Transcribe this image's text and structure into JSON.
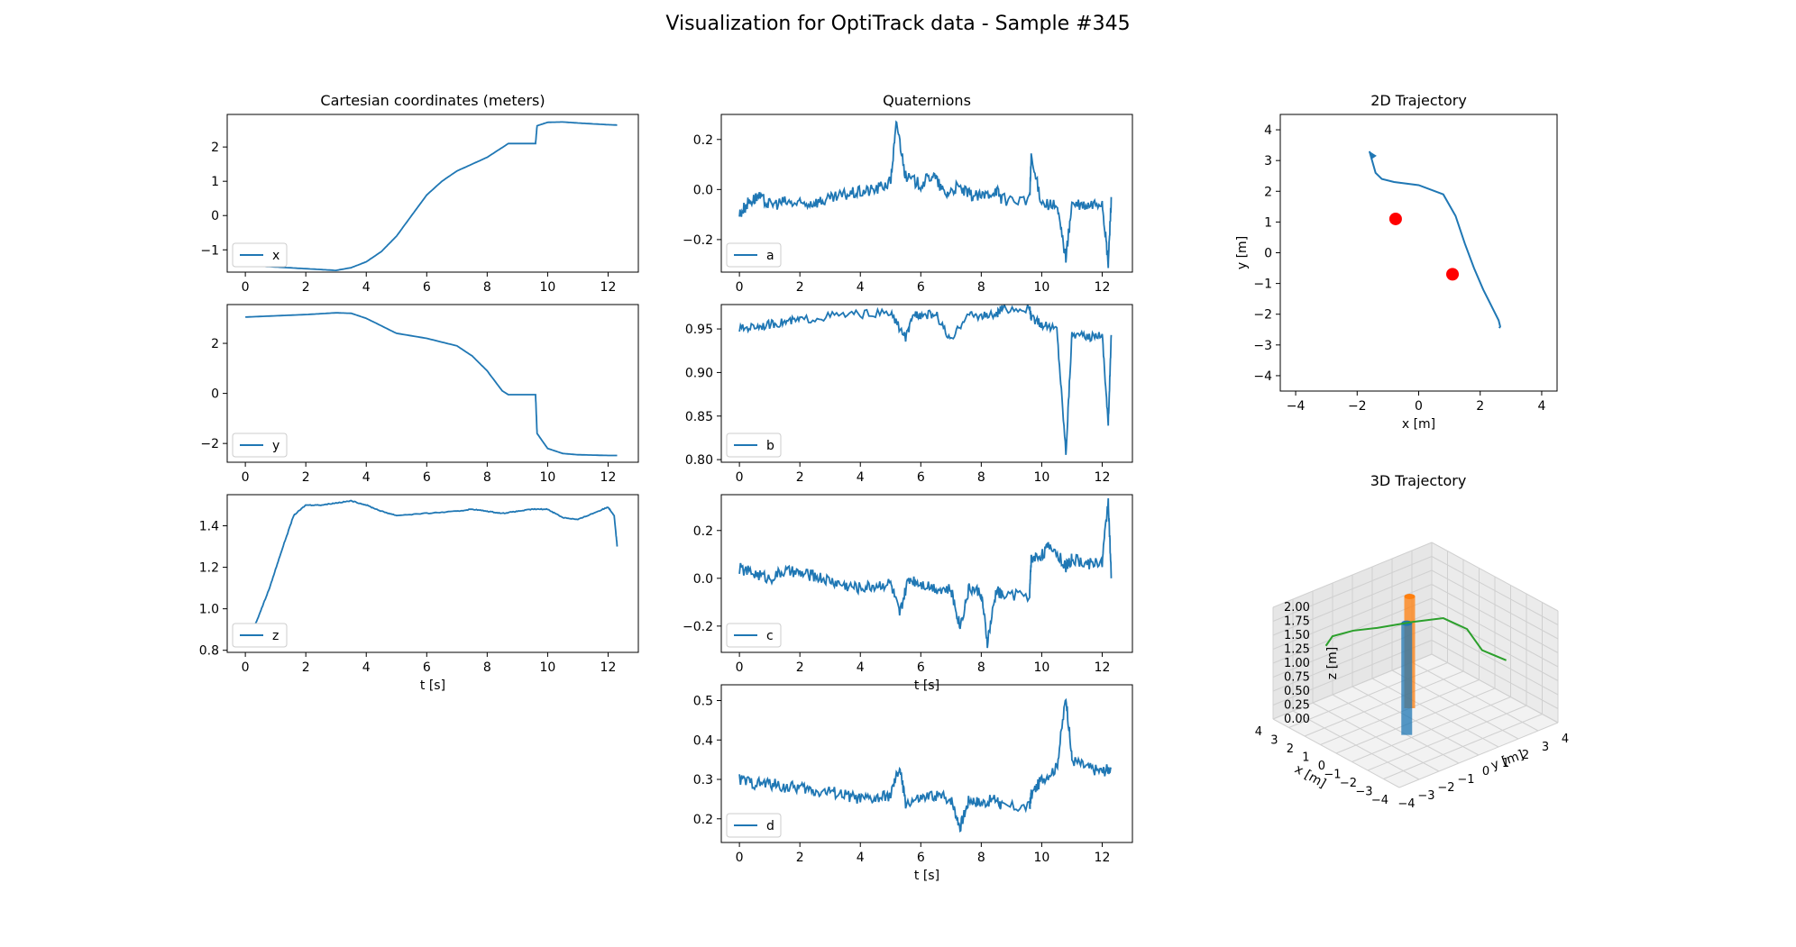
{
  "figure": {
    "title": "Visualization for OptiTrack data - Sample #345"
  },
  "colors": {
    "series": "#1f77b4",
    "marker": "#ff0000",
    "trajectory3d": "#2ca02c",
    "obstacle1": "#1f77b4",
    "obstacle2": "#ff7f0e",
    "axes": "#000000",
    "legend_border": "#cccccc"
  },
  "chart_data": [
    {
      "id": "x",
      "type": "line",
      "title": "Cartesian coordinates (meters)",
      "xlabel": "",
      "ylabel": "",
      "xlim": [
        -0.6,
        13.0
      ],
      "ylim": [
        -1.65,
        2.95
      ],
      "xticks": [
        "0",
        "2",
        "4",
        "6",
        "8",
        "10",
        "12"
      ],
      "xtick_values": [
        0,
        2,
        4,
        6,
        8,
        10,
        12
      ],
      "yticks": [
        "−1",
        "0",
        "1",
        "2"
      ],
      "ytick_values": [
        -1,
        0,
        1,
        2
      ],
      "legend": "x",
      "legend_position": "lower left",
      "x": [
        0,
        1,
        2,
        3,
        3.5,
        4,
        4.5,
        5,
        5.5,
        6,
        6.5,
        7,
        7.5,
        8,
        8.7,
        9.6,
        9.65,
        10,
        10.5,
        11,
        12,
        12.3
      ],
      "y": [
        -1.45,
        -1.5,
        -1.55,
        -1.6,
        -1.52,
        -1.35,
        -1.05,
        -0.6,
        0,
        0.6,
        1.0,
        1.3,
        1.5,
        1.7,
        2.1,
        2.1,
        2.62,
        2.72,
        2.73,
        2.7,
        2.65,
        2.64
      ]
    },
    {
      "id": "y",
      "type": "line",
      "title": "",
      "xlabel": "",
      "ylabel": "",
      "xlim": [
        -0.6,
        13.0
      ],
      "ylim": [
        -2.75,
        3.55
      ],
      "xticks": [
        "0",
        "2",
        "4",
        "6",
        "8",
        "10",
        "12"
      ],
      "xtick_values": [
        0,
        2,
        4,
        6,
        8,
        10,
        12
      ],
      "yticks": [
        "−2",
        "0",
        "2"
      ],
      "ytick_values": [
        -2,
        0,
        2
      ],
      "legend": "y",
      "legend_position": "lower left",
      "x": [
        0,
        1,
        2,
        3,
        3.5,
        4,
        4.5,
        5,
        6,
        7,
        7.5,
        8,
        8.5,
        8.7,
        9.6,
        9.65,
        10,
        10.5,
        11,
        12,
        12.3
      ],
      "y": [
        3.05,
        3.1,
        3.15,
        3.22,
        3.2,
        3.0,
        2.7,
        2.4,
        2.2,
        1.9,
        1.5,
        0.9,
        0.1,
        -0.05,
        -0.05,
        -1.6,
        -2.2,
        -2.4,
        -2.45,
        -2.48,
        -2.48
      ]
    },
    {
      "id": "z",
      "type": "line",
      "title": "",
      "xlabel": "t [s]",
      "ylabel": "",
      "xlim": [
        -0.6,
        13.0
      ],
      "ylim": [
        0.79,
        1.55
      ],
      "xticks": [
        "0",
        "2",
        "4",
        "6",
        "8",
        "10",
        "12"
      ],
      "xtick_values": [
        0,
        2,
        4,
        6,
        8,
        10,
        12
      ],
      "yticks": [
        "0.8",
        "1.0",
        "1.2",
        "1.4"
      ],
      "ytick_values": [
        0.8,
        1.0,
        1.2,
        1.4
      ],
      "legend": "z",
      "legend_position": "lower left",
      "x": [
        0,
        0.4,
        0.8,
        1.2,
        1.6,
        2,
        2.5,
        3,
        3.5,
        4,
        4.5,
        5,
        6,
        7,
        7.5,
        8,
        8.5,
        9,
        9.5,
        10,
        10.5,
        11,
        11.5,
        12,
        12.2,
        12.3
      ],
      "y": [
        0.82,
        0.95,
        1.1,
        1.28,
        1.45,
        1.5,
        1.5,
        1.51,
        1.52,
        1.5,
        1.47,
        1.45,
        1.46,
        1.47,
        1.48,
        1.47,
        1.46,
        1.47,
        1.48,
        1.48,
        1.44,
        1.43,
        1.46,
        1.49,
        1.45,
        1.3
      ]
    },
    {
      "id": "a",
      "type": "line",
      "title": "Quaternions",
      "xlabel": "",
      "ylabel": "",
      "xlim": [
        -0.6,
        13.0
      ],
      "ylim": [
        -0.33,
        0.3
      ],
      "xticks": [
        "0",
        "2",
        "4",
        "6",
        "8",
        "10",
        "12"
      ],
      "xtick_values": [
        0,
        2,
        4,
        6,
        8,
        10,
        12
      ],
      "yticks": [
        "−0.2",
        "0.0",
        "0.2"
      ],
      "ytick_values": [
        -0.2,
        0,
        0.2
      ],
      "legend": "a",
      "legend_position": "lower left",
      "x": [
        0,
        0.3,
        0.6,
        1,
        1.5,
        2,
        2.5,
        3,
        3.5,
        4,
        4.5,
        5,
        5.2,
        5.5,
        6,
        6.4,
        6.8,
        7.2,
        7.6,
        8,
        8.5,
        8.7,
        9.6,
        9.65,
        10,
        10.5,
        10.8,
        11,
        11.5,
        12,
        12.2,
        12.3
      ],
      "y": [
        -0.1,
        -0.05,
        -0.03,
        -0.06,
        -0.05,
        -0.06,
        -0.05,
        -0.04,
        -0.02,
        -0.01,
        0.0,
        0.03,
        0.27,
        0.05,
        0.02,
        0.06,
        -0.02,
        0.01,
        -0.02,
        -0.03,
        0.0,
        -0.04,
        -0.04,
        0.12,
        -0.05,
        -0.07,
        -0.27,
        -0.06,
        -0.07,
        -0.05,
        -0.3,
        -0.03
      ]
    },
    {
      "id": "b",
      "type": "line",
      "title": "",
      "xlabel": "",
      "ylabel": "",
      "xlim": [
        -0.6,
        13.0
      ],
      "ylim": [
        0.797,
        0.978
      ],
      "xticks": [
        "0",
        "2",
        "4",
        "6",
        "8",
        "10",
        "12"
      ],
      "xtick_values": [
        0,
        2,
        4,
        6,
        8,
        10,
        12
      ],
      "yticks": [
        "0.80",
        "0.85",
        "0.90",
        "0.95"
      ],
      "ytick_values": [
        0.8,
        0.85,
        0.9,
        0.95
      ],
      "legend": "b",
      "legend_position": "lower left",
      "x": [
        0,
        0.5,
        1,
        1.5,
        2,
        3,
        4,
        5,
        5.5,
        5.8,
        6,
        6.5,
        7,
        7.5,
        8,
        8.5,
        8.7,
        9.6,
        9.65,
        10,
        10.5,
        10.8,
        11,
        11.5,
        12,
        12.2,
        12.3
      ],
      "y": [
        0.95,
        0.953,
        0.955,
        0.958,
        0.96,
        0.965,
        0.967,
        0.968,
        0.94,
        0.968,
        0.966,
        0.967,
        0.935,
        0.966,
        0.965,
        0.966,
        0.973,
        0.973,
        0.963,
        0.955,
        0.95,
        0.808,
        0.945,
        0.94,
        0.945,
        0.84,
        0.943
      ]
    },
    {
      "id": "c",
      "type": "line",
      "title": "",
      "xlabel": "t [s]",
      "ylabel": "",
      "xlim": [
        -0.6,
        13.0
      ],
      "ylim": [
        -0.31,
        0.35
      ],
      "xticks": [
        "0",
        "2",
        "4",
        "6",
        "8",
        "10",
        "12"
      ],
      "xtick_values": [
        0,
        2,
        4,
        6,
        8,
        10,
        12
      ],
      "yticks": [
        "−0.2",
        "0.0",
        "0.2"
      ],
      "ytick_values": [
        -0.2,
        0,
        0.2
      ],
      "legend": "c",
      "legend_position": "lower left",
      "x": [
        0,
        0.5,
        1,
        1.5,
        2,
        2.5,
        3,
        3.5,
        4,
        4.5,
        5,
        5.3,
        5.6,
        6,
        6.5,
        7,
        7.3,
        7.6,
        8,
        8.2,
        8.5,
        8.7,
        9.6,
        9.65,
        10,
        10.3,
        10.8,
        11,
        11.5,
        12,
        12.2,
        12.3
      ],
      "y": [
        0.04,
        0.02,
        0.0,
        0.03,
        0.02,
        0.01,
        -0.01,
        -0.03,
        -0.04,
        -0.03,
        -0.02,
        -0.15,
        0.0,
        -0.02,
        -0.04,
        -0.05,
        -0.2,
        -0.04,
        -0.06,
        -0.27,
        -0.05,
        -0.07,
        -0.07,
        0.08,
        0.1,
        0.14,
        0.05,
        0.08,
        0.06,
        0.07,
        0.33,
        0.0
      ]
    },
    {
      "id": "d",
      "type": "line",
      "title": "",
      "xlabel": "t [s]",
      "ylabel": "",
      "xlim": [
        -0.6,
        13.0
      ],
      "ylim": [
        0.14,
        0.54
      ],
      "xticks": [
        "0",
        "2",
        "4",
        "6",
        "8",
        "10",
        "12"
      ],
      "xtick_values": [
        0,
        2,
        4,
        6,
        8,
        10,
        12
      ],
      "yticks": [
        "0.2",
        "0.3",
        "0.4",
        "0.5"
      ],
      "ytick_values": [
        0.2,
        0.3,
        0.4,
        0.5
      ],
      "legend": "d",
      "legend_position": "lower left",
      "x": [
        0,
        0.5,
        1,
        1.5,
        2,
        2.5,
        3,
        3.5,
        4,
        4.5,
        5,
        5.3,
        5.5,
        6,
        6.5,
        7,
        7.3,
        7.6,
        8,
        8.5,
        8.7,
        9.6,
        9.65,
        10,
        10.5,
        10.8,
        11,
        11.5,
        12,
        12.3
      ],
      "y": [
        0.3,
        0.29,
        0.29,
        0.28,
        0.28,
        0.27,
        0.27,
        0.26,
        0.25,
        0.25,
        0.26,
        0.33,
        0.24,
        0.25,
        0.26,
        0.25,
        0.18,
        0.25,
        0.24,
        0.25,
        0.23,
        0.23,
        0.26,
        0.3,
        0.33,
        0.51,
        0.35,
        0.33,
        0.32,
        0.33
      ]
    },
    {
      "id": "traj2d",
      "type": "scatter",
      "title": "2D Trajectory",
      "xlabel": "x [m]",
      "ylabel": "y [m]",
      "xlim": [
        -4.5,
        4.5
      ],
      "ylim": [
        -4.5,
        4.5
      ],
      "xticks": [
        "−4",
        "−2",
        "0",
        "2",
        "4"
      ],
      "xtick_values": [
        -4,
        -2,
        0,
        2,
        4
      ],
      "yticks": [
        "−4",
        "−3",
        "−2",
        "−1",
        "0",
        "1",
        "2",
        "3",
        "4"
      ],
      "ytick_values": [
        -4,
        -3,
        -2,
        -1,
        0,
        1,
        2,
        3,
        4
      ],
      "path_x": [
        -1.6,
        -1.4,
        -1.2,
        -0.8,
        0,
        0.8,
        1.2,
        1.5,
        1.8,
        2.1,
        2.4,
        2.6,
        2.65,
        2.62
      ],
      "path_y": [
        3.3,
        2.6,
        2.4,
        2.3,
        2.2,
        1.9,
        1.2,
        0.3,
        -0.5,
        -1.2,
        -1.8,
        -2.2,
        -2.4,
        -2.45
      ],
      "points": [
        {
          "x": -0.75,
          "y": 1.1
        },
        {
          "x": 1.1,
          "y": -0.7
        }
      ]
    },
    {
      "id": "traj3d",
      "type": "scatter",
      "title": "3D Trajectory",
      "xlabel": "x [m]",
      "ylabel": "y [m]",
      "zlabel": "z [m]",
      "xticks": [
        "−4",
        "−3",
        "−2",
        "−1",
        "0",
        "1",
        "2",
        "3",
        "4"
      ],
      "yticks": [
        "−4",
        "−3",
        "−2",
        "−1",
        "0",
        "1",
        "2",
        "3",
        "4"
      ],
      "zticks": [
        "0.00",
        "0.25",
        "0.50",
        "0.75",
        "1.00",
        "1.25",
        "1.50",
        "1.75",
        "2.00"
      ]
    }
  ]
}
